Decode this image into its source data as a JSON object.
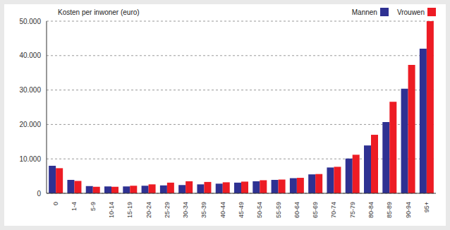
{
  "chart_data": {
    "type": "bar",
    "title": "Kosten per inwoner (euro)",
    "categories": [
      "0",
      "1-4",
      "5-9",
      "10-14",
      "15-19",
      "20-24",
      "25-29",
      "30-34",
      "35-39",
      "40-44",
      "45-49",
      "50-54",
      "55-59",
      "60-64",
      "65-69",
      "70-74",
      "75-79",
      "80-84",
      "85-89",
      "90-94",
      "95+"
    ],
    "series": [
      {
        "name": "Mannen",
        "color": "#2e3192",
        "values": [
          8000,
          3900,
          2100,
          2000,
          2000,
          2200,
          2300,
          2400,
          2600,
          2800,
          3100,
          3500,
          3900,
          4400,
          5500,
          7500,
          10100,
          13900,
          20700,
          30400,
          42000
        ]
      },
      {
        "name": "Vrouwen",
        "color": "#ed1c24",
        "values": [
          7300,
          3600,
          1900,
          1900,
          2200,
          2600,
          3100,
          3500,
          3300,
          3200,
          3400,
          3800,
          4000,
          4500,
          5600,
          7700,
          11200,
          17000,
          26600,
          37300,
          50000
        ]
      }
    ],
    "ylim": [
      0,
      50000
    ],
    "yticks": [
      0,
      {
        "value": 10000,
        "label": "10.000"
      },
      {
        "value": 20000,
        "label": "20.000"
      },
      {
        "value": 30000,
        "label": "30.000"
      },
      {
        "value": 40000,
        "label": "40.000"
      },
      {
        "value": 50000,
        "label": "50.000"
      }
    ],
    "grid": true,
    "legend": "top-right"
  }
}
